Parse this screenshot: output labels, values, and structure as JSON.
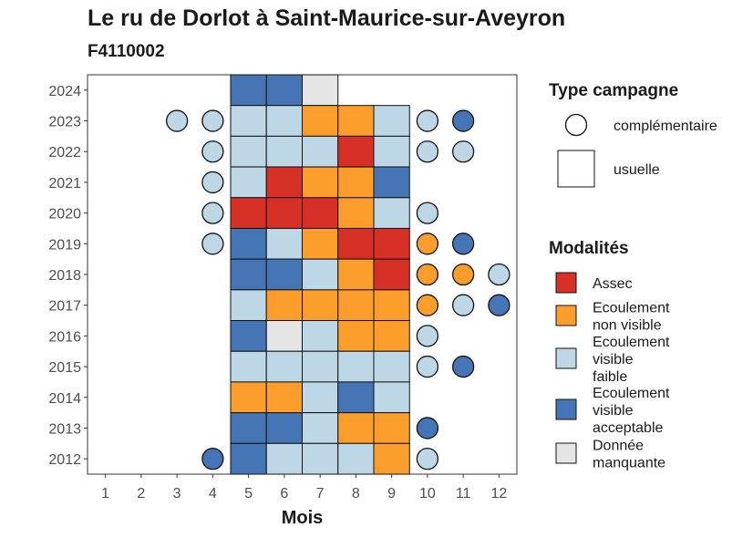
{
  "chart_data": {
    "type": "heatmap",
    "title": "Le ru de Dorlot à Saint-Maurice-sur-Aveyron",
    "subtitle": "F4110002",
    "xlabel": "Mois",
    "ylabel": "",
    "x_ticks": [
      "1",
      "2",
      "3",
      "4",
      "5",
      "6",
      "7",
      "8",
      "9",
      "10",
      "11",
      "12"
    ],
    "y_ticks": [
      "2012",
      "2013",
      "2014",
      "2015",
      "2016",
      "2017",
      "2018",
      "2019",
      "2020",
      "2021",
      "2022",
      "2023",
      "2024"
    ],
    "xlim": [
      0.5,
      12.5
    ],
    "ylim": [
      2011.5,
      2024.5
    ],
    "grid": false,
    "legend_position": "right",
    "shape_legend": {
      "title": "Type campagne",
      "items": [
        {
          "key": "complementaire",
          "label": "complémentaire",
          "shape": "circle"
        },
        {
          "key": "usuelle",
          "label": "usuelle",
          "shape": "square"
        }
      ]
    },
    "color_legend": {
      "title": "Modalités",
      "items": [
        {
          "key": "assec",
          "label_lines": [
            "Assec"
          ],
          "color": "#d73027"
        },
        {
          "key": "ecoul_nv",
          "label_lines": [
            "Ecoulement",
            "non visible"
          ],
          "color": "#fc9d2c"
        },
        {
          "key": "ecoul_vf",
          "label_lines": [
            "Ecoulement",
            "visible",
            "faible"
          ],
          "color": "#bdd7e7"
        },
        {
          "key": "ecoul_va",
          "label_lines": [
            "Ecoulement",
            "visible",
            "acceptable"
          ],
          "color": "#4575b4"
        },
        {
          "key": "nd",
          "label_lines": [
            "Donnée",
            "manquante"
          ],
          "color": "#e5e5e5"
        }
      ]
    },
    "points": [
      {
        "year": 2024,
        "month": 5,
        "type": "usuelle",
        "modalite": "ecoul_va"
      },
      {
        "year": 2024,
        "month": 6,
        "type": "usuelle",
        "modalite": "ecoul_va"
      },
      {
        "year": 2024,
        "month": 7,
        "type": "usuelle",
        "modalite": "nd"
      },
      {
        "year": 2023,
        "month": 3,
        "type": "complementaire",
        "modalite": "ecoul_vf"
      },
      {
        "year": 2023,
        "month": 4,
        "type": "complementaire",
        "modalite": "ecoul_vf"
      },
      {
        "year": 2023,
        "month": 5,
        "type": "usuelle",
        "modalite": "ecoul_vf"
      },
      {
        "year": 2023,
        "month": 6,
        "type": "usuelle",
        "modalite": "ecoul_vf"
      },
      {
        "year": 2023,
        "month": 7,
        "type": "usuelle",
        "modalite": "ecoul_nv"
      },
      {
        "year": 2023,
        "month": 8,
        "type": "usuelle",
        "modalite": "ecoul_nv"
      },
      {
        "year": 2023,
        "month": 9,
        "type": "usuelle",
        "modalite": "ecoul_vf"
      },
      {
        "year": 2023,
        "month": 10,
        "type": "complementaire",
        "modalite": "ecoul_vf"
      },
      {
        "year": 2023,
        "month": 11,
        "type": "complementaire",
        "modalite": "ecoul_va"
      },
      {
        "year": 2022,
        "month": 4,
        "type": "complementaire",
        "modalite": "ecoul_vf"
      },
      {
        "year": 2022,
        "month": 5,
        "type": "usuelle",
        "modalite": "ecoul_vf"
      },
      {
        "year": 2022,
        "month": 6,
        "type": "usuelle",
        "modalite": "ecoul_vf"
      },
      {
        "year": 2022,
        "month": 7,
        "type": "usuelle",
        "modalite": "ecoul_vf"
      },
      {
        "year": 2022,
        "month": 8,
        "type": "usuelle",
        "modalite": "assec"
      },
      {
        "year": 2022,
        "month": 9,
        "type": "usuelle",
        "modalite": "ecoul_vf"
      },
      {
        "year": 2022,
        "month": 10,
        "type": "complementaire",
        "modalite": "ecoul_vf"
      },
      {
        "year": 2022,
        "month": 11,
        "type": "complementaire",
        "modalite": "ecoul_vf"
      },
      {
        "year": 2021,
        "month": 4,
        "type": "complementaire",
        "modalite": "ecoul_vf"
      },
      {
        "year": 2021,
        "month": 5,
        "type": "usuelle",
        "modalite": "ecoul_vf"
      },
      {
        "year": 2021,
        "month": 6,
        "type": "usuelle",
        "modalite": "assec"
      },
      {
        "year": 2021,
        "month": 7,
        "type": "usuelle",
        "modalite": "ecoul_nv"
      },
      {
        "year": 2021,
        "month": 8,
        "type": "usuelle",
        "modalite": "ecoul_nv"
      },
      {
        "year": 2021,
        "month": 9,
        "type": "usuelle",
        "modalite": "ecoul_va"
      },
      {
        "year": 2020,
        "month": 4,
        "type": "complementaire",
        "modalite": "ecoul_vf"
      },
      {
        "year": 2020,
        "month": 5,
        "type": "usuelle",
        "modalite": "assec"
      },
      {
        "year": 2020,
        "month": 6,
        "type": "usuelle",
        "modalite": "assec"
      },
      {
        "year": 2020,
        "month": 7,
        "type": "usuelle",
        "modalite": "assec"
      },
      {
        "year": 2020,
        "month": 8,
        "type": "usuelle",
        "modalite": "ecoul_nv"
      },
      {
        "year": 2020,
        "month": 9,
        "type": "usuelle",
        "modalite": "ecoul_vf"
      },
      {
        "year": 2020,
        "month": 10,
        "type": "complementaire",
        "modalite": "ecoul_vf"
      },
      {
        "year": 2019,
        "month": 4,
        "type": "complementaire",
        "modalite": "ecoul_vf"
      },
      {
        "year": 2019,
        "month": 5,
        "type": "usuelle",
        "modalite": "ecoul_va"
      },
      {
        "year": 2019,
        "month": 6,
        "type": "usuelle",
        "modalite": "ecoul_vf"
      },
      {
        "year": 2019,
        "month": 7,
        "type": "usuelle",
        "modalite": "ecoul_nv"
      },
      {
        "year": 2019,
        "month": 8,
        "type": "usuelle",
        "modalite": "assec"
      },
      {
        "year": 2019,
        "month": 9,
        "type": "usuelle",
        "modalite": "assec"
      },
      {
        "year": 2019,
        "month": 10,
        "type": "complementaire",
        "modalite": "ecoul_nv"
      },
      {
        "year": 2019,
        "month": 11,
        "type": "complementaire",
        "modalite": "ecoul_va"
      },
      {
        "year": 2018,
        "month": 5,
        "type": "usuelle",
        "modalite": "ecoul_va"
      },
      {
        "year": 2018,
        "month": 6,
        "type": "usuelle",
        "modalite": "ecoul_va"
      },
      {
        "year": 2018,
        "month": 7,
        "type": "usuelle",
        "modalite": "ecoul_vf"
      },
      {
        "year": 2018,
        "month": 8,
        "type": "usuelle",
        "modalite": "ecoul_nv"
      },
      {
        "year": 2018,
        "month": 9,
        "type": "usuelle",
        "modalite": "assec"
      },
      {
        "year": 2018,
        "month": 10,
        "type": "complementaire",
        "modalite": "ecoul_nv"
      },
      {
        "year": 2018,
        "month": 11,
        "type": "complementaire",
        "modalite": "ecoul_nv"
      },
      {
        "year": 2018,
        "month": 12,
        "type": "complementaire",
        "modalite": "ecoul_vf"
      },
      {
        "year": 2017,
        "month": 5,
        "type": "usuelle",
        "modalite": "ecoul_vf"
      },
      {
        "year": 2017,
        "month": 6,
        "type": "usuelle",
        "modalite": "ecoul_nv"
      },
      {
        "year": 2017,
        "month": 7,
        "type": "usuelle",
        "modalite": "ecoul_nv"
      },
      {
        "year": 2017,
        "month": 8,
        "type": "usuelle",
        "modalite": "ecoul_nv"
      },
      {
        "year": 2017,
        "month": 9,
        "type": "usuelle",
        "modalite": "ecoul_nv"
      },
      {
        "year": 2017,
        "month": 10,
        "type": "complementaire",
        "modalite": "ecoul_nv"
      },
      {
        "year": 2017,
        "month": 11,
        "type": "complementaire",
        "modalite": "ecoul_vf"
      },
      {
        "year": 2017,
        "month": 12,
        "type": "complementaire",
        "modalite": "ecoul_va"
      },
      {
        "year": 2016,
        "month": 5,
        "type": "usuelle",
        "modalite": "ecoul_va"
      },
      {
        "year": 2016,
        "month": 6,
        "type": "usuelle",
        "modalite": "nd"
      },
      {
        "year": 2016,
        "month": 7,
        "type": "usuelle",
        "modalite": "ecoul_vf"
      },
      {
        "year": 2016,
        "month": 8,
        "type": "usuelle",
        "modalite": "ecoul_nv"
      },
      {
        "year": 2016,
        "month": 9,
        "type": "usuelle",
        "modalite": "ecoul_nv"
      },
      {
        "year": 2016,
        "month": 10,
        "type": "complementaire",
        "modalite": "ecoul_vf"
      },
      {
        "year": 2015,
        "month": 5,
        "type": "usuelle",
        "modalite": "ecoul_vf"
      },
      {
        "year": 2015,
        "month": 6,
        "type": "usuelle",
        "modalite": "ecoul_vf"
      },
      {
        "year": 2015,
        "month": 7,
        "type": "usuelle",
        "modalite": "ecoul_vf"
      },
      {
        "year": 2015,
        "month": 8,
        "type": "usuelle",
        "modalite": "ecoul_vf"
      },
      {
        "year": 2015,
        "month": 9,
        "type": "usuelle",
        "modalite": "ecoul_vf"
      },
      {
        "year": 2015,
        "month": 10,
        "type": "complementaire",
        "modalite": "ecoul_vf"
      },
      {
        "year": 2015,
        "month": 11,
        "type": "complementaire",
        "modalite": "ecoul_va"
      },
      {
        "year": 2014,
        "month": 5,
        "type": "usuelle",
        "modalite": "ecoul_nv"
      },
      {
        "year": 2014,
        "month": 6,
        "type": "usuelle",
        "modalite": "ecoul_nv"
      },
      {
        "year": 2014,
        "month": 7,
        "type": "usuelle",
        "modalite": "ecoul_vf"
      },
      {
        "year": 2014,
        "month": 8,
        "type": "usuelle",
        "modalite": "ecoul_va"
      },
      {
        "year": 2014,
        "month": 9,
        "type": "usuelle",
        "modalite": "ecoul_vf"
      },
      {
        "year": 2013,
        "month": 5,
        "type": "usuelle",
        "modalite": "ecoul_va"
      },
      {
        "year": 2013,
        "month": 6,
        "type": "usuelle",
        "modalite": "ecoul_va"
      },
      {
        "year": 2013,
        "month": 7,
        "type": "usuelle",
        "modalite": "ecoul_vf"
      },
      {
        "year": 2013,
        "month": 8,
        "type": "usuelle",
        "modalite": "ecoul_nv"
      },
      {
        "year": 2013,
        "month": 9,
        "type": "usuelle",
        "modalite": "ecoul_nv"
      },
      {
        "year": 2013,
        "month": 10,
        "type": "complementaire",
        "modalite": "ecoul_va"
      },
      {
        "year": 2012,
        "month": 4,
        "type": "complementaire",
        "modalite": "ecoul_va"
      },
      {
        "year": 2012,
        "month": 5,
        "type": "usuelle",
        "modalite": "ecoul_va"
      },
      {
        "year": 2012,
        "month": 6,
        "type": "usuelle",
        "modalite": "ecoul_vf"
      },
      {
        "year": 2012,
        "month": 7,
        "type": "usuelle",
        "modalite": "ecoul_vf"
      },
      {
        "year": 2012,
        "month": 8,
        "type": "usuelle",
        "modalite": "ecoul_vf"
      },
      {
        "year": 2012,
        "month": 9,
        "type": "usuelle",
        "modalite": "ecoul_nv"
      },
      {
        "year": 2012,
        "month": 10,
        "type": "complementaire",
        "modalite": "ecoul_vf"
      }
    ]
  }
}
